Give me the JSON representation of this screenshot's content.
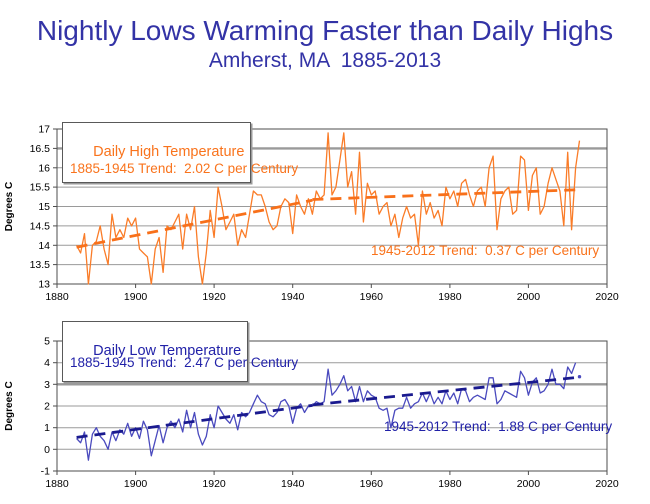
{
  "title": "Nightly Lows Warming Faster than Daily Highs",
  "subtitle": "Amherst, MA  1885-2013",
  "colors": {
    "title_text": "#3333A6",
    "high_series": "#FA7C28",
    "high_trend": "#F8701A",
    "high_text": "#F9731C",
    "low_series": "#4A4ABE",
    "low_trend": "#1A1A8F",
    "low_text": "#2121A8",
    "gridline": "#9A9A9A",
    "axis": "#4D4D4D",
    "tick_text": "#000000"
  },
  "chart_data": [
    {
      "type": "line",
      "id": "daily-high",
      "legend": "Daily High Temperature",
      "ylabel": "Degrees C",
      "ylim": [
        13,
        17
      ],
      "ytick_step": 0.5,
      "xlim": [
        1880,
        2020
      ],
      "xticks": [
        1880,
        1900,
        1920,
        1940,
        1960,
        1980,
        2000,
        2020
      ],
      "thick_gridline": 16.5,
      "grid": "horizontal",
      "legend_position": "top-left",
      "color": "#FA7C28",
      "trend_color": "#F8701A",
      "x_start_year": 1885,
      "values": [
        14.0,
        13.8,
        14.3,
        13.0,
        14.0,
        14.1,
        14.5,
        13.9,
        13.5,
        14.8,
        14.2,
        14.4,
        14.2,
        14.7,
        14.5,
        14.7,
        13.9,
        13.8,
        13.7,
        13.0,
        13.9,
        14.2,
        13.3,
        14.5,
        14.4,
        14.6,
        14.8,
        13.9,
        14.8,
        14.4,
        15.0,
        13.7,
        13.0,
        13.8,
        14.9,
        14.2,
        15.5,
        15.0,
        14.4,
        14.6,
        14.8,
        14.0,
        14.4,
        14.2,
        14.8,
        15.4,
        15.3,
        15.3,
        15.0,
        14.6,
        14.4,
        14.5,
        15.0,
        15.2,
        15.1,
        14.3,
        15.3,
        15.0,
        14.8,
        15.2,
        14.8,
        15.4,
        15.2,
        15.3,
        16.9,
        15.3,
        15.5,
        16.2,
        16.9,
        15.5,
        15.9,
        14.8,
        16.4,
        14.6,
        15.6,
        15.3,
        15.4,
        14.8,
        15.0,
        15.1,
        14.5,
        14.8,
        14.2,
        14.7,
        15.0,
        14.7,
        14.8,
        14.0,
        15.4,
        14.8,
        15.1,
        14.7,
        14.9,
        14.5,
        15.5,
        15.2,
        15.4,
        15.0,
        15.6,
        15.7,
        15.3,
        15.0,
        15.4,
        15.5,
        15.0,
        16.0,
        16.3,
        14.4,
        15.2,
        15.4,
        15.5,
        14.8,
        14.9,
        16.3,
        16.2,
        14.9,
        15.8,
        16.0,
        14.8,
        15.0,
        15.6,
        16.0,
        15.7,
        15.4,
        14.5,
        16.4,
        14.4,
        16.0,
        16.7
      ],
      "trend_segments": [
        {
          "label": "1885-1945 Trend:  2.02 C per Century",
          "x1": 1885,
          "y1": 13.95,
          "x2": 1945,
          "y2": 15.16
        },
        {
          "label": "1945-2012 Trend:  0.37 C per Century",
          "x1": 1945,
          "y1": 15.18,
          "x2": 2012,
          "y2": 15.43
        }
      ]
    },
    {
      "type": "line",
      "id": "daily-low",
      "legend": "Daily Low Temperature",
      "ylabel": "Degrees C",
      "ylim": [
        -1,
        5
      ],
      "ytick_step": 1,
      "xlim": [
        1880,
        2020
      ],
      "xticks": [
        1880,
        1900,
        1920,
        1940,
        1960,
        1980,
        2000,
        2020
      ],
      "thick_gridline": 3,
      "grid": "horizontal",
      "legend_position": "top-left",
      "color": "#4A4ABE",
      "trend_color": "#1A1A8F",
      "x_start_year": 1885,
      "values": [
        0.5,
        0.3,
        0.8,
        -0.5,
        0.7,
        1.0,
        0.6,
        0.4,
        0.0,
        0.8,
        0.4,
        0.9,
        0.7,
        1.2,
        0.6,
        1.0,
        0.5,
        1.3,
        0.9,
        -0.3,
        0.4,
        1.1,
        0.3,
        1.0,
        1.3,
        1.0,
        1.4,
        0.8,
        1.8,
        1.0,
        1.7,
        0.7,
        0.2,
        0.6,
        1.6,
        1.0,
        2.0,
        1.7,
        1.4,
        1.2,
        1.6,
        0.9,
        1.7,
        1.5,
        1.7,
        2.1,
        2.5,
        2.2,
        2.1,
        1.6,
        1.5,
        1.7,
        2.2,
        2.3,
        2.0,
        1.2,
        1.9,
        2.1,
        1.7,
        2.0,
        2.0,
        2.2,
        2.1,
        2.2,
        3.7,
        2.5,
        2.7,
        3.0,
        3.4,
        2.7,
        2.9,
        2.2,
        2.9,
        2.2,
        2.7,
        2.5,
        2.4,
        1.9,
        1.8,
        1.9,
        1.0,
        1.8,
        1.9,
        1.9,
        2.4,
        1.9,
        2.1,
        2.2,
        2.6,
        2.2,
        2.6,
        2.1,
        2.4,
        2.1,
        2.7,
        2.3,
        2.6,
        2.1,
        2.8,
        2.7,
        2.2,
        2.4,
        2.5,
        2.4,
        2.3,
        3.3,
        3.3,
        2.1,
        2.3,
        2.7,
        2.6,
        2.5,
        2.4,
        3.6,
        3.3,
        2.5,
        3.1,
        3.3,
        2.6,
        2.7,
        3.0,
        3.7,
        3.0,
        3.0,
        2.8,
        3.8,
        3.5,
        4.0
      ],
      "extra_point": {
        "year": 2013,
        "value": 3.35
      },
      "trend_segments": [
        {
          "label": "1885-1945 Trend:  2.47 C per Century",
          "x1": 1885,
          "y1": 0.55,
          "x2": 1945,
          "y2": 2.03
        },
        {
          "label": "1945-2012 Trend:  1.88 C per Century",
          "x1": 1945,
          "y1": 2.05,
          "x2": 2012,
          "y2": 3.31
        }
      ]
    }
  ]
}
